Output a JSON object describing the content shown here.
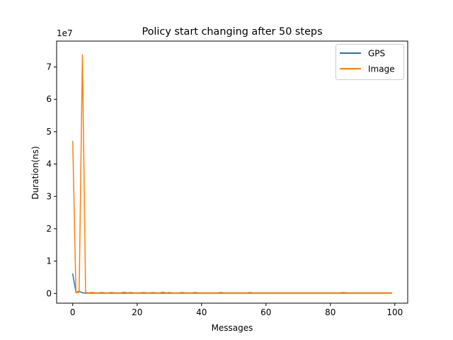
{
  "chart_data": {
    "type": "line",
    "title": "Policy start changing after 50 steps",
    "xlabel": "Messages",
    "ylabel": "Duration(ns)",
    "y_offset_label": "1e7",
    "xlim": [
      -5,
      104
    ],
    "ylim": [
      -0.3,
      7.8
    ],
    "y_unit_multiplier": 10000000,
    "xticks": [
      0,
      20,
      40,
      60,
      80,
      100
    ],
    "yticks": [
      0,
      1,
      2,
      3,
      4,
      5,
      6,
      7
    ],
    "grid": false,
    "legend_position": "top-right",
    "series": [
      {
        "name": "GPS",
        "color": "#1f77b4",
        "x": [
          0,
          1,
          2,
          3,
          4,
          5,
          6,
          7,
          8,
          9,
          10,
          11,
          12,
          13,
          14,
          15,
          16,
          17,
          18,
          19,
          20,
          21,
          22,
          23,
          24,
          25,
          26,
          27,
          28,
          29,
          30,
          31,
          32,
          33,
          34,
          35,
          36,
          37,
          38,
          39,
          40,
          41,
          42,
          43,
          44,
          45,
          46,
          47,
          48,
          49,
          50,
          51,
          52,
          53,
          54,
          55,
          56,
          57,
          58,
          59,
          60,
          61,
          62,
          63,
          64,
          65,
          66,
          67,
          68,
          69,
          70,
          71,
          72,
          73,
          74,
          75,
          76,
          77,
          78,
          79,
          80,
          81,
          82,
          83,
          84,
          85,
          86,
          87,
          88,
          89,
          90,
          91,
          92,
          93,
          94,
          95,
          96,
          97,
          98,
          99
        ],
        "y": [
          0.6,
          0.03,
          0.07,
          0.02,
          0.01,
          0.01,
          0.01,
          0.01,
          0.01,
          0.01,
          0.01,
          0.01,
          0.01,
          0.01,
          0.01,
          0.01,
          0.01,
          0.01,
          0.01,
          0.01,
          0.01,
          0.01,
          0.01,
          0.01,
          0.01,
          0.01,
          0.01,
          0.01,
          0.01,
          0.01,
          0.01,
          0.01,
          0.01,
          0.01,
          0.01,
          0.01,
          0.01,
          0.01,
          0.01,
          0.01,
          0.01,
          0.01,
          0.01,
          0.01,
          0.01,
          0.01,
          0.01,
          0.01,
          0.01,
          0.01,
          0.01,
          0.01,
          0.01,
          0.01,
          0.01,
          0.01,
          0.01,
          0.01,
          0.01,
          0.01,
          0.01,
          0.01,
          0.01,
          0.01,
          0.01,
          0.01,
          0.01,
          0.01,
          0.01,
          0.01,
          0.01,
          0.01,
          0.01,
          0.01,
          0.01,
          0.01,
          0.01,
          0.01,
          0.01,
          0.01,
          0.01,
          0.01,
          0.01,
          0.01,
          0.01,
          0.01,
          0.01,
          0.01,
          0.01,
          0.01,
          0.01,
          0.01,
          0.01,
          0.01,
          0.01,
          0.01,
          0.01,
          0.01,
          0.01,
          0.01
        ]
      },
      {
        "name": "Image",
        "color": "#ff7f0e",
        "x": [
          0,
          1,
          2,
          3,
          4,
          5,
          6,
          7,
          8,
          9,
          10,
          11,
          12,
          13,
          14,
          15,
          16,
          17,
          18,
          19,
          20,
          21,
          22,
          23,
          24,
          25,
          26,
          27,
          28,
          29,
          30,
          31,
          32,
          33,
          34,
          35,
          36,
          37,
          38,
          39,
          40,
          41,
          42,
          43,
          44,
          45,
          46,
          47,
          48,
          49,
          50,
          51,
          52,
          53,
          54,
          55,
          56,
          57,
          58,
          59,
          60,
          61,
          62,
          63,
          64,
          65,
          66,
          67,
          68,
          69,
          70,
          71,
          72,
          73,
          74,
          75,
          76,
          77,
          78,
          79,
          80,
          81,
          82,
          83,
          84,
          85,
          86,
          87,
          88,
          89,
          90,
          91,
          92,
          93,
          94,
          95,
          96,
          97,
          98,
          99
        ],
        "y": [
          4.7,
          0.02,
          0.04,
          7.38,
          0.03,
          0.02,
          0.03,
          0.02,
          0.02,
          0.03,
          0.02,
          0.02,
          0.03,
          0.02,
          0.02,
          0.02,
          0.04,
          0.02,
          0.03,
          0.02,
          0.02,
          0.02,
          0.03,
          0.02,
          0.02,
          0.03,
          0.02,
          0.02,
          0.04,
          0.02,
          0.03,
          0.02,
          0.02,
          0.02,
          0.03,
          0.02,
          0.02,
          0.02,
          0.03,
          0.02,
          0.02,
          0.02,
          0.02,
          0.02,
          0.02,
          0.02,
          0.03,
          0.02,
          0.02,
          0.02,
          0.02,
          0.02,
          0.02,
          0.02,
          0.02,
          0.03,
          0.02,
          0.02,
          0.02,
          0.02,
          0.02,
          0.02,
          0.02,
          0.02,
          0.02,
          0.02,
          0.02,
          0.02,
          0.02,
          0.02,
          0.02,
          0.02,
          0.02,
          0.02,
          0.02,
          0.02,
          0.02,
          0.02,
          0.02,
          0.02,
          0.02,
          0.02,
          0.02,
          0.02,
          0.03,
          0.02,
          0.02,
          0.02,
          0.02,
          0.02,
          0.02,
          0.02,
          0.02,
          0.02,
          0.02,
          0.02,
          0.02,
          0.02,
          0.02,
          0.02
        ]
      }
    ]
  }
}
